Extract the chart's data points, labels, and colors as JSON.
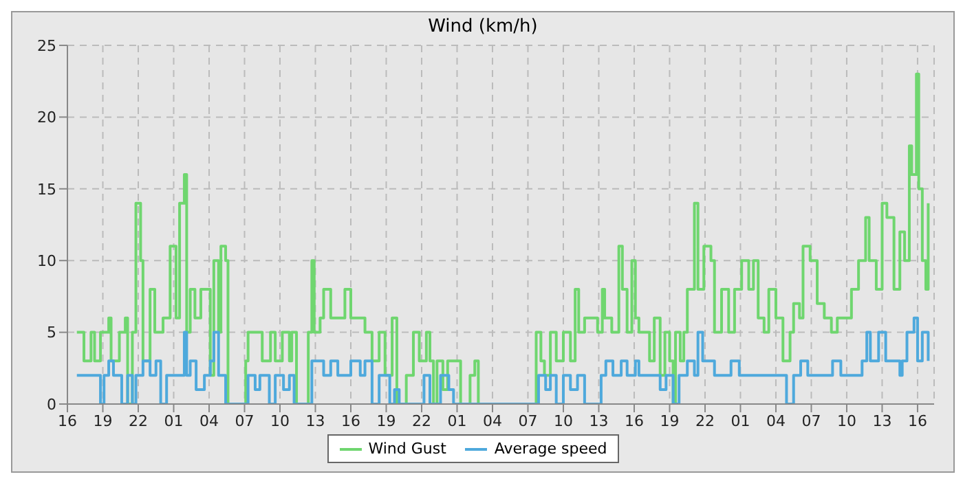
{
  "chart_data": {
    "type": "step",
    "title": "Wind (km/h)",
    "xlim": [
      "--01-01T16:00",
      "--01-04T17:24"
    ],
    "xticks": [
      {
        "value": "--01-01T16:00",
        "label": "16"
      },
      {
        "value": "--01-01T19:00",
        "label": "19"
      },
      {
        "value": "--01-01T22:00",
        "label": "22"
      },
      {
        "value": "--01-02T01:00",
        "label": "01"
      },
      {
        "value": "--01-02T04:00",
        "label": "04"
      },
      {
        "value": "--01-02T07:00",
        "label": "07"
      },
      {
        "value": "--01-02T10:00",
        "label": "10"
      },
      {
        "value": "--01-02T13:00",
        "label": "13"
      },
      {
        "value": "--01-02T16:00",
        "label": "16"
      },
      {
        "value": "--01-02T19:00",
        "label": "19"
      },
      {
        "value": "--01-02T22:00",
        "label": "22"
      },
      {
        "value": "--01-03T01:00",
        "label": "01"
      },
      {
        "value": "--01-03T04:00",
        "label": "04"
      },
      {
        "value": "--01-03T07:00",
        "label": "07"
      },
      {
        "value": "--01-03T10:00",
        "label": "10"
      },
      {
        "value": "--01-03T13:00",
        "label": "13"
      },
      {
        "value": "--01-03T16:00",
        "label": "16"
      },
      {
        "value": "--01-03T19:00",
        "label": "19"
      },
      {
        "value": "--01-03T22:00",
        "label": "22"
      },
      {
        "value": "--01-04T01:00",
        "label": "01"
      },
      {
        "value": "--01-04T04:00",
        "label": "04"
      },
      {
        "value": "--01-04T07:00",
        "label": "07"
      },
      {
        "value": "--01-04T10:00",
        "label": "10"
      },
      {
        "value": "--01-04T13:00",
        "label": "13"
      },
      {
        "value": "--01-04T16:00",
        "label": "16"
      }
    ],
    "ylim": [
      0,
      25
    ],
    "yticks": [
      0,
      5,
      10,
      15,
      20,
      25
    ],
    "grid": true,
    "legend": "bottom",
    "marker": "none",
    "line_style": "solid",
    "series": [
      {
        "name": "Wind Gust",
        "color": "#6fd66f",
        "x": [
          "--01-01T16:48",
          "--01-01T17:24",
          "--01-01T18:00",
          "--01-01T18:18",
          "--01-01T18:48",
          "--01-01T19:30",
          "--01-01T19:42",
          "--01-01T20:24",
          "--01-01T20:54",
          "--01-01T21:06",
          "--01-01T21:30",
          "--01-01T21:48",
          "--01-01T22:12",
          "--01-01T22:24",
          "--01-01T23:00",
          "--01-01T23:24",
          "--01-02T00:06",
          "--01-02T00:42",
          "--01-02T01:12",
          "--01-02T01:30",
          "--01-02T01:54",
          "--01-02T02:06",
          "--01-02T02:24",
          "--01-02T02:48",
          "--01-02T03:18",
          "--01-02T03:48",
          "--01-02T04:06",
          "--01-02T04:24",
          "--01-02T04:48",
          "--01-02T05:00",
          "--01-02T05:24",
          "--01-02T05:36",
          "--01-02T06:54",
          "--01-02T07:06",
          "--01-02T07:18",
          "--01-02T08:18",
          "--01-02T08:30",
          "--01-02T09:12",
          "--01-02T09:36",
          "--01-02T10:12",
          "--01-02T10:48",
          "--01-02T11:00",
          "--01-02T11:24",
          "--01-02T12:12",
          "--01-02T12:24",
          "--01-02T12:42",
          "--01-02T12:54",
          "--01-02T13:24",
          "--01-02T13:42",
          "--01-02T14:18",
          "--01-02T14:54",
          "--01-02T15:30",
          "--01-02T16:00",
          "--01-02T16:48",
          "--01-02T17:12",
          "--01-02T17:48",
          "--01-02T18:24",
          "--01-02T18:54",
          "--01-02T19:30",
          "--01-02T19:54",
          "--01-02T20:42",
          "--01-02T21:18",
          "--01-02T21:48",
          "--01-02T22:24",
          "--01-02T22:42",
          "--01-02T23:00",
          "--01-02T23:18",
          "--01-02T23:48",
          "--01-03T00:12",
          "--01-03T00:42",
          "--01-03T01:18",
          "--01-03T02:06",
          "--01-03T02:30",
          "--01-03T02:48",
          "--01-03T07:30",
          "--01-03T07:42",
          "--01-03T08:06",
          "--01-03T08:24",
          "--01-03T08:54",
          "--01-03T09:24",
          "--01-03T10:00",
          "--01-03T10:36",
          "--01-03T11:00",
          "--01-03T11:18",
          "--01-03T11:48",
          "--01-03T12:18",
          "--01-03T12:54",
          "--01-03T13:18",
          "--01-03T13:30",
          "--01-03T14:06",
          "--01-03T14:42",
          "--01-03T15:00",
          "--01-03T15:24",
          "--01-03T15:48",
          "--01-03T16:06",
          "--01-03T16:24",
          "--01-03T17:00",
          "--01-03T17:18",
          "--01-03T17:42",
          "--01-03T18:12",
          "--01-03T18:36",
          "--01-03T19:00",
          "--01-03T19:18",
          "--01-03T19:30",
          "--01-03T19:54",
          "--01-03T20:12",
          "--01-03T20:30",
          "--01-03T21:06",
          "--01-03T21:24",
          "--01-03T21:54",
          "--01-03T22:30",
          "--01-03T22:48",
          "--01-03T23:24",
          "--01-04T00:00",
          "--01-04T00:30",
          "--01-04T01:06",
          "--01-04T01:42",
          "--01-04T02:06",
          "--01-04T02:30",
          "--01-04T03:00",
          "--01-04T03:24",
          "--01-04T04:00",
          "--01-04T04:36",
          "--01-04T05:12",
          "--01-04T05:30",
          "--01-04T06:00",
          "--01-04T06:18",
          "--01-04T06:54",
          "--01-04T07:30",
          "--01-04T08:06",
          "--01-04T08:42",
          "--01-04T09:12",
          "--01-04T09:48",
          "--01-04T10:24",
          "--01-04T11:00",
          "--01-04T11:36",
          "--01-04T11:54",
          "--01-04T12:30",
          "--01-04T13:00",
          "--01-04T13:24",
          "--01-04T14:00",
          "--01-04T14:30",
          "--01-04T14:54",
          "--01-04T15:18",
          "--01-04T15:30",
          "--01-04T15:54",
          "--01-04T16:06",
          "--01-04T16:24",
          "--01-04T16:42",
          "--01-04T16:54"
        ],
        "values": [
          5,
          3,
          5,
          3,
          5,
          6,
          3,
          5,
          6,
          0,
          5,
          14,
          10,
          3,
          8,
          5,
          6,
          11,
          6,
          14,
          16,
          5,
          8,
          6,
          8,
          8,
          2,
          10,
          5,
          11,
          10,
          0,
          0,
          3,
          5,
          5,
          3,
          5,
          3,
          5,
          3,
          5,
          0,
          0,
          5,
          10,
          5,
          6,
          8,
          6,
          6,
          8,
          6,
          6,
          5,
          3,
          5,
          2,
          6,
          0,
          2,
          5,
          3,
          5,
          3,
          0,
          3,
          1,
          3,
          3,
          0,
          2,
          3,
          0,
          0,
          5,
          3,
          2,
          5,
          3,
          5,
          3,
          8,
          5,
          6,
          6,
          5,
          8,
          6,
          5,
          11,
          8,
          5,
          10,
          6,
          5,
          5,
          3,
          6,
          2,
          5,
          3,
          0,
          5,
          3,
          5,
          8,
          14,
          8,
          11,
          10,
          5,
          8,
          5,
          8,
          10,
          8,
          10,
          6,
          5,
          8,
          6,
          3,
          5,
          7,
          6,
          11,
          10,
          7,
          6,
          5,
          6,
          6,
          8,
          10,
          13,
          10,
          8,
          14,
          13,
          8,
          12,
          10,
          18,
          16,
          23,
          15,
          10,
          8,
          14
        ]
      },
      {
        "name": "Average speed",
        "color": "#4ea9dc",
        "x": [
          "--01-01T16:48",
          "--01-01T18:00",
          "--01-01T18:48",
          "--01-01T19:06",
          "--01-01T19:30",
          "--01-01T19:54",
          "--01-01T20:36",
          "--01-01T21:06",
          "--01-01T21:30",
          "--01-01T21:48",
          "--01-01T22:24",
          "--01-01T23:00",
          "--01-01T23:30",
          "--01-01T23:54",
          "--01-02T00:24",
          "--01-02T01:30",
          "--01-02T01:54",
          "--01-02T02:06",
          "--01-02T02:24",
          "--01-02T02:54",
          "--01-02T03:36",
          "--01-02T04:06",
          "--01-02T04:24",
          "--01-02T04:48",
          "--01-02T05:24",
          "--01-02T06:54",
          "--01-02T07:18",
          "--01-02T07:54",
          "--01-02T08:18",
          "--01-02T09:06",
          "--01-02T09:36",
          "--01-02T10:18",
          "--01-02T10:48",
          "--01-02T11:12",
          "--01-02T12:24",
          "--01-02T12:42",
          "--01-02T13:24",
          "--01-02T13:42",
          "--01-02T14:18",
          "--01-02T14:54",
          "--01-02T16:00",
          "--01-02T16:48",
          "--01-02T17:12",
          "--01-02T17:48",
          "--01-02T18:24",
          "--01-02T19:18",
          "--01-02T19:42",
          "--01-02T20:06",
          "--01-02T22:12",
          "--01-02T22:42",
          "--01-02T23:36",
          "--01-03T00:18",
          "--01-03T00:42",
          "--01-03T07:30",
          "--01-03T07:54",
          "--01-03T08:30",
          "--01-03T08:54",
          "--01-03T09:24",
          "--01-03T10:00",
          "--01-03T10:36",
          "--01-03T11:12",
          "--01-03T11:48",
          "--01-03T13:12",
          "--01-03T13:36",
          "--01-03T14:12",
          "--01-03T14:54",
          "--01-03T15:24",
          "--01-03T16:06",
          "--01-03T16:24",
          "--01-03T18:12",
          "--01-03T18:42",
          "--01-03T19:18",
          "--01-03T19:48",
          "--01-03T20:30",
          "--01-03T21:06",
          "--01-03T21:24",
          "--01-03T21:48",
          "--01-03T22:48",
          "--01-04T00:12",
          "--01-04T00:54",
          "--01-04T03:24",
          "--01-04T04:36",
          "--01-04T04:54",
          "--01-04T05:30",
          "--01-04T06:06",
          "--01-04T06:42",
          "--01-04T07:30",
          "--01-04T08:48",
          "--01-04T09:30",
          "--01-04T11:18",
          "--01-04T11:42",
          "--01-04T12:00",
          "--01-04T12:42",
          "--01-04T13:18",
          "--01-04T14:00",
          "--01-04T14:30",
          "--01-04T14:42",
          "--01-04T15:06",
          "--01-04T15:42",
          "--01-04T16:00",
          "--01-04T16:24",
          "--01-04T16:54"
        ],
        "values": [
          2,
          2,
          0,
          2,
          3,
          2,
          0,
          2,
          0,
          2,
          3,
          2,
          3,
          0,
          2,
          2,
          5,
          2,
          3,
          1,
          2,
          3,
          5,
          2,
          0,
          0,
          2,
          1,
          2,
          0,
          2,
          1,
          2,
          0,
          0,
          3,
          3,
          2,
          3,
          2,
          3,
          2,
          3,
          0,
          2,
          0,
          1,
          0,
          2,
          0,
          2,
          1,
          0,
          0,
          2,
          1,
          2,
          0,
          2,
          1,
          2,
          0,
          2,
          3,
          2,
          3,
          2,
          3,
          2,
          1,
          2,
          0,
          2,
          3,
          2,
          5,
          3,
          2,
          3,
          2,
          2,
          2,
          0,
          2,
          3,
          2,
          2,
          3,
          2,
          3,
          5,
          3,
          5,
          3,
          3,
          2,
          3,
          5,
          6,
          3,
          5,
          3
        ]
      }
    ]
  }
}
